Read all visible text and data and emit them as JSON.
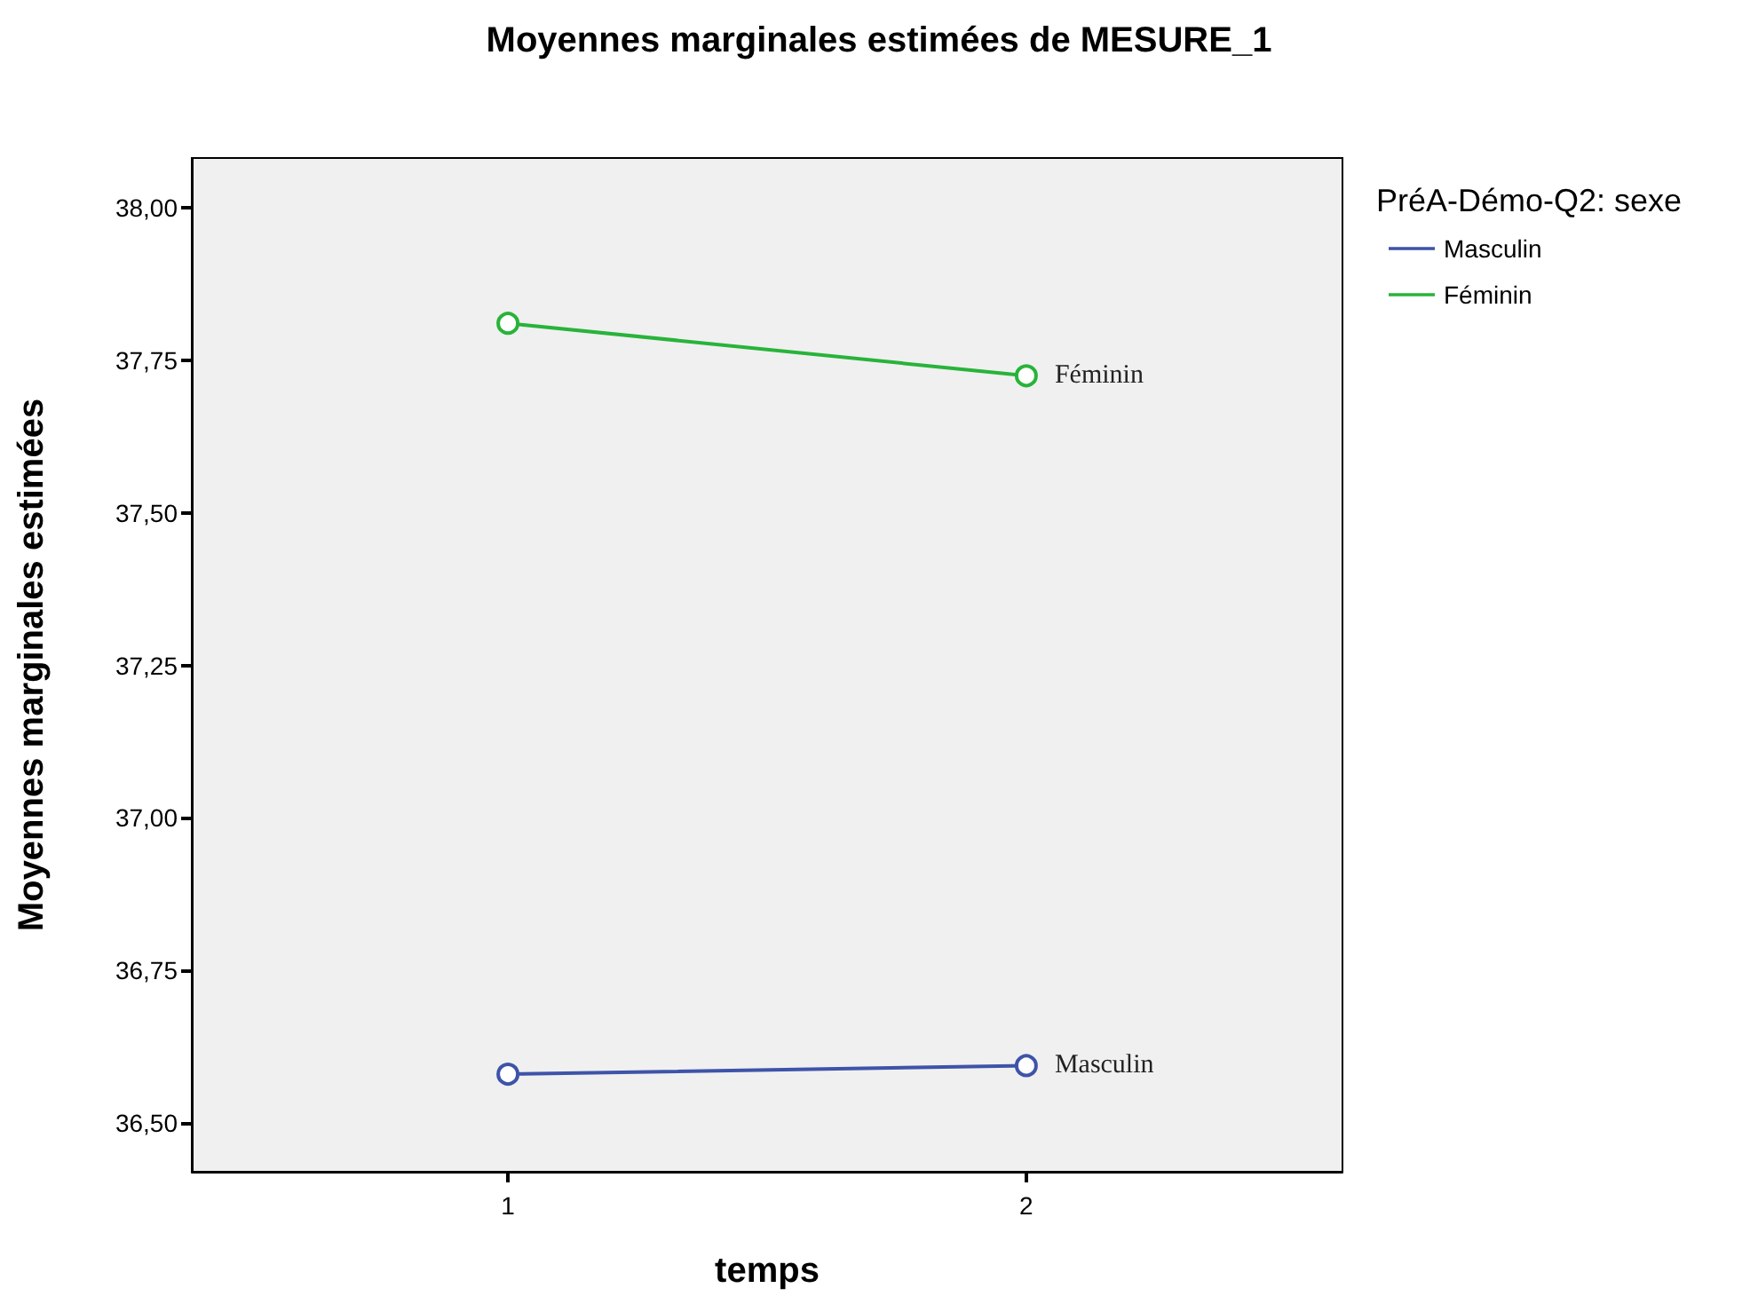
{
  "chart_data": {
    "type": "line",
    "title": "Moyennes marginales estimées de MESURE_1",
    "xlabel": "temps",
    "ylabel": "Moyennes marginales estimées",
    "legend_title": "PréA-Démo-Q2: sexe",
    "x": [
      1,
      2
    ],
    "series": [
      {
        "name": "Masculin",
        "color": "#3e53a9",
        "values": [
          36.58,
          36.594
        ]
      },
      {
        "name": "Féminin",
        "color": "#28b33a",
        "values": [
          37.811,
          37.725
        ]
      }
    ],
    "xlim": [
      0.39,
      2.61
    ],
    "xticks": [
      1,
      2
    ],
    "ylim": [
      36.42,
      38.082
    ],
    "yticks": [
      {
        "value": 36.5,
        "label": "36,50"
      },
      {
        "value": 36.75,
        "label": "36,75"
      },
      {
        "value": 37,
        "label": "37,00"
      },
      {
        "value": 37.25,
        "label": "37,25"
      },
      {
        "value": 37.5,
        "label": "37,50"
      },
      {
        "value": 37.75,
        "label": "37,75"
      },
      {
        "value": 38,
        "label": "38,00"
      }
    ],
    "grid": false,
    "legend": "top right",
    "marker": "circle",
    "line_style": "solid"
  }
}
